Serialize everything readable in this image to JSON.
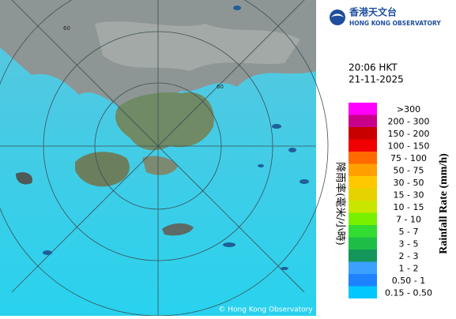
{
  "header": {
    "name_zh": "香港天文台",
    "name_en": "HONG KONG OBSERVATORY"
  },
  "time": "20:06 HKT",
  "date": "21-11-2025",
  "legend": {
    "title_zh": "降雨率(毫米/小時)",
    "title_en": "Rainfall Rate (mm/h)",
    "items": [
      {
        "label": ">300",
        "color": "#ff00ff"
      },
      {
        "label": "200 - 300",
        "color": "#c8008c"
      },
      {
        "label": "150 - 200",
        "color": "#c80000"
      },
      {
        "label": "100 - 150",
        "color": "#f00000"
      },
      {
        "label": "75 - 100",
        "color": "#ff6a00"
      },
      {
        "label": "50 - 75",
        "color": "#ffa000"
      },
      {
        "label": "30 - 50",
        "color": "#ffc800"
      },
      {
        "label": "15 - 30",
        "color": "#e6d200"
      },
      {
        "label": "10 - 15",
        "color": "#c8e600"
      },
      {
        "label": "7 - 10",
        "color": "#78f000"
      },
      {
        "label": "5 - 7",
        "color": "#32dc32"
      },
      {
        "label": "3 - 5",
        "color": "#1ebe46"
      },
      {
        "label": "2 - 3",
        "color": "#14965a"
      },
      {
        "label": "1 - 2",
        "color": "#3ca0ff"
      },
      {
        "label": "0.50 - 1",
        "color": "#1e82ff"
      },
      {
        "label": "0.15 - 0.50",
        "color": "#00c8ff"
      }
    ]
  },
  "map": {
    "ring_label": "60",
    "copyright": "© Hong Kong Observatory"
  }
}
